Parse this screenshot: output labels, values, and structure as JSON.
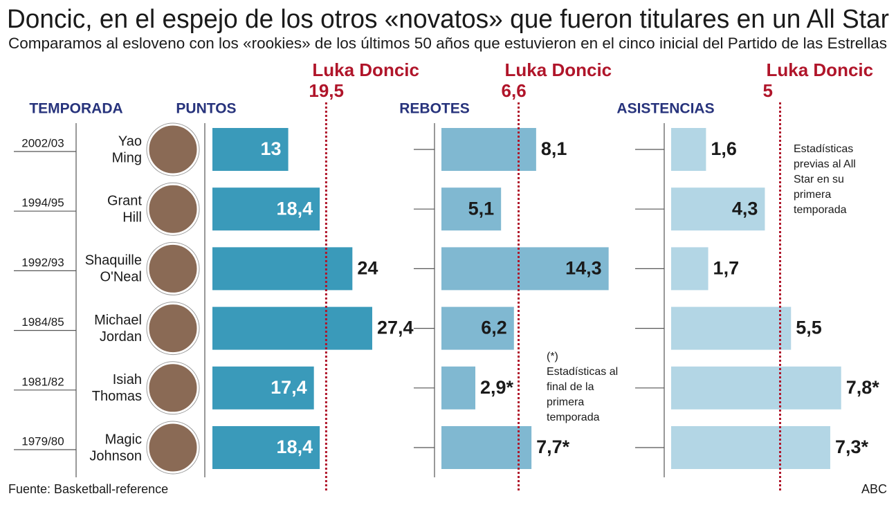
{
  "title": "Doncic, en el espejo de los otros «novatos» que fueron titulares en un All Star",
  "subtitle": "Comparamos al esloveno con los «rookies» de los últimos 50 años que estuvieron en el cinco inicial del Partido de las Estrellas",
  "season_header": "TEMPORADA",
  "seasons": [
    "2002/03",
    "1994/95",
    "1992/93",
    "1984/85",
    "1981/82",
    "1979/80"
  ],
  "players": [
    [
      "Yao",
      "Ming"
    ],
    [
      "Grant",
      "Hill"
    ],
    [
      "Shaquille",
      "O'Neal"
    ],
    [
      "Michael",
      "Jordan"
    ],
    [
      "Isiah",
      "Thomas"
    ],
    [
      "Magic",
      "Johnson"
    ]
  ],
  "note_marker": "(*)",
  "note_text": "Estadísticas al final de la primera temporada",
  "side_note": "Estadísticas previas al All Star en su primera temporada",
  "source": "Fuente: Basketball-reference",
  "credit": "ABC",
  "chart_data": [
    {
      "type": "bar",
      "title": "PUNTOS",
      "color": "#3a9aba",
      "values": [
        13,
        18.4,
        24,
        27.4,
        17.4,
        18.4
      ],
      "value_labels": [
        "13",
        "18,4",
        "24",
        "27,4",
        "17,4",
        "18,4"
      ],
      "label_inside": [
        true,
        true,
        false,
        false,
        true,
        true
      ],
      "reference": {
        "name": "Luka Doncic",
        "value": 19.5,
        "label": "19,5"
      }
    },
    {
      "type": "bar",
      "title": "REBOTES",
      "color": "#80b8d1",
      "values": [
        8.1,
        5.1,
        14.3,
        6.2,
        2.9,
        7.7
      ],
      "value_labels": [
        "8,1",
        "5,1",
        "14,3",
        "6,2",
        "2,9*",
        "7,7*"
      ],
      "label_inside": [
        false,
        true,
        true,
        true,
        false,
        false
      ],
      "reference": {
        "name": "Luka Doncic",
        "value": 6.6,
        "label": "6,6"
      }
    },
    {
      "type": "bar",
      "title": "ASISTENCIAS",
      "color": "#b3d6e5",
      "values": [
        1.6,
        4.3,
        1.7,
        5.5,
        7.8,
        7.3
      ],
      "value_labels": [
        "1,6",
        "4,3",
        "1,7",
        "5,5",
        "7,8*",
        "7,3*"
      ],
      "label_inside": [
        false,
        true,
        false,
        false,
        false,
        false
      ],
      "reference": {
        "name": "Luka Doncic",
        "value": 5,
        "label": "5"
      }
    }
  ]
}
